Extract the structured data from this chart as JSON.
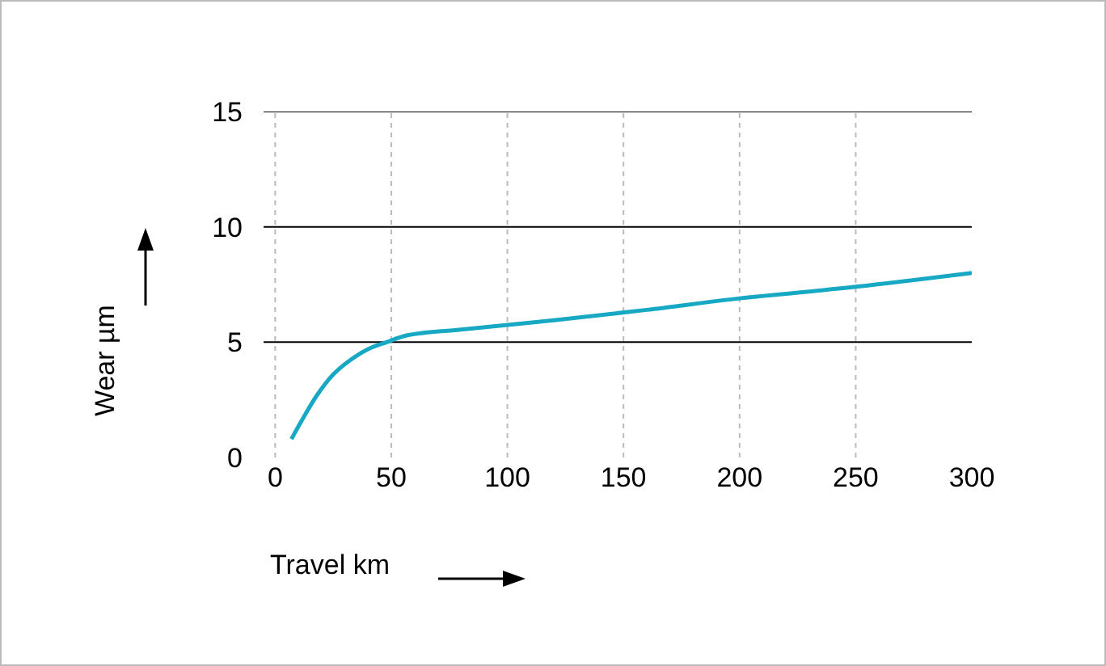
{
  "chart_data": {
    "type": "line",
    "xlabel": "Travel km",
    "ylabel": "Wear µm",
    "xlim": [
      -5,
      300
    ],
    "xticks": [
      0,
      50,
      100,
      150,
      200,
      250,
      300
    ],
    "ylim": [
      0,
      15
    ],
    "yticks": [
      0,
      5,
      10,
      15
    ],
    "grid": true,
    "marker": "none",
    "line_style": "solid",
    "series": [
      {
        "color": "#17a9c4",
        "x": [
          7,
          12,
          18,
          25,
          32,
          40,
          48,
          57,
          80,
          120,
          160,
          200,
          250,
          300
        ],
        "values": [
          0.8,
          1.7,
          2.7,
          3.6,
          4.2,
          4.7,
          5.0,
          5.3,
          5.55,
          5.95,
          6.4,
          6.9,
          7.4,
          8.0
        ]
      }
    ]
  }
}
